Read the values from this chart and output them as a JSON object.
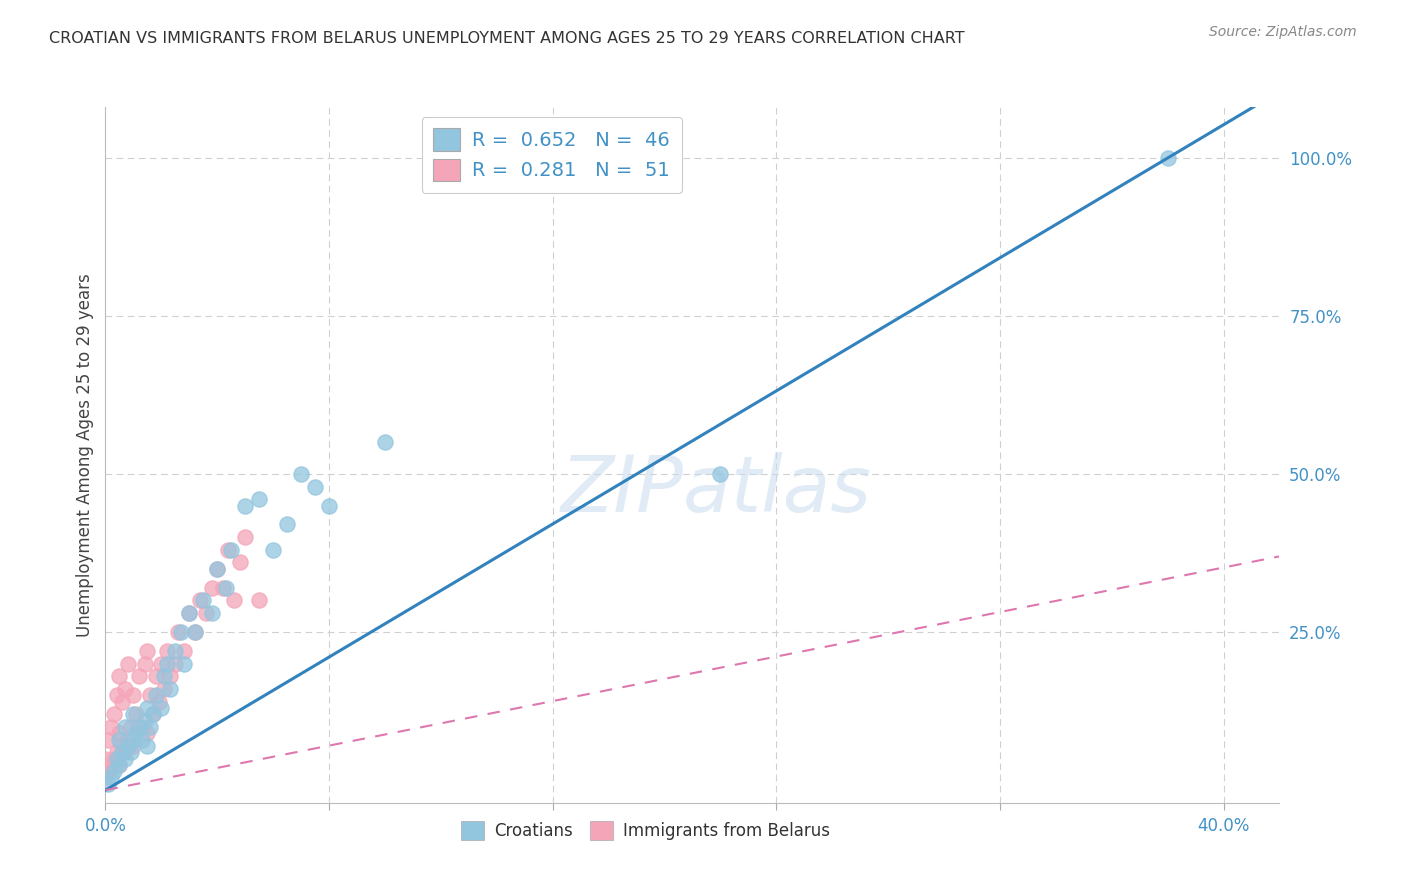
{
  "title": "CROATIAN VS IMMIGRANTS FROM BELARUS UNEMPLOYMENT AMONG AGES 25 TO 29 YEARS CORRELATION CHART",
  "source": "Source: ZipAtlas.com",
  "ylabel": "Unemployment Among Ages 25 to 29 years",
  "croatian_R": 0.652,
  "croatian_N": 46,
  "belarus_R": 0.281,
  "belarus_N": 51,
  "xlim": [
    0.0,
    0.42
  ],
  "ylim": [
    -0.02,
    1.08
  ],
  "blue_scatter_color": "#92c5de",
  "pink_scatter_color": "#f4a5b8",
  "blue_line_color": "#3182bd",
  "pink_line_color": "#de77ae",
  "title_color": "#333333",
  "axis_label_color": "#4292c6",
  "legend_text_color": "#4292c6",
  "watermark": "ZIPatlas",
  "background_color": "#ffffff",
  "grid_color": "#d0d0d0",
  "blue_line_slope": 2.63,
  "blue_line_intercept": 0.0,
  "pink_line_slope": 0.88,
  "pink_line_intercept": 0.0,
  "scatter_marker_size": 120,
  "croatian_x": [
    0.001,
    0.002,
    0.003,
    0.004,
    0.005,
    0.005,
    0.006,
    0.007,
    0.007,
    0.008,
    0.009,
    0.01,
    0.01,
    0.011,
    0.012,
    0.013,
    0.014,
    0.015,
    0.015,
    0.016,
    0.017,
    0.018,
    0.02,
    0.021,
    0.022,
    0.023,
    0.025,
    0.027,
    0.028,
    0.03,
    0.032,
    0.035,
    0.038,
    0.04,
    0.043,
    0.045,
    0.05,
    0.055,
    0.06,
    0.065,
    0.07,
    0.075,
    0.08,
    0.1,
    0.22,
    0.38
  ],
  "croatian_y": [
    0.01,
    0.02,
    0.03,
    0.05,
    0.04,
    0.08,
    0.06,
    0.05,
    0.1,
    0.07,
    0.06,
    0.08,
    0.12,
    0.09,
    0.1,
    0.08,
    0.11,
    0.07,
    0.13,
    0.1,
    0.12,
    0.15,
    0.13,
    0.18,
    0.2,
    0.16,
    0.22,
    0.25,
    0.2,
    0.28,
    0.25,
    0.3,
    0.28,
    0.35,
    0.32,
    0.38,
    0.45,
    0.46,
    0.38,
    0.42,
    0.5,
    0.48,
    0.45,
    0.55,
    0.5,
    1.0
  ],
  "belarus_x": [
    0.0,
    0.0,
    0.001,
    0.001,
    0.002,
    0.002,
    0.003,
    0.003,
    0.004,
    0.004,
    0.005,
    0.005,
    0.005,
    0.006,
    0.006,
    0.007,
    0.007,
    0.008,
    0.008,
    0.009,
    0.01,
    0.01,
    0.011,
    0.012,
    0.013,
    0.014,
    0.015,
    0.015,
    0.016,
    0.017,
    0.018,
    0.019,
    0.02,
    0.021,
    0.022,
    0.023,
    0.025,
    0.026,
    0.028,
    0.03,
    0.032,
    0.034,
    0.036,
    0.038,
    0.04,
    0.042,
    0.044,
    0.046,
    0.048,
    0.05,
    0.055
  ],
  "belarus_y": [
    0.02,
    0.05,
    0.03,
    0.08,
    0.04,
    0.1,
    0.05,
    0.12,
    0.06,
    0.15,
    0.04,
    0.09,
    0.18,
    0.07,
    0.14,
    0.06,
    0.16,
    0.08,
    0.2,
    0.1,
    0.07,
    0.15,
    0.12,
    0.18,
    0.1,
    0.2,
    0.09,
    0.22,
    0.15,
    0.12,
    0.18,
    0.14,
    0.2,
    0.16,
    0.22,
    0.18,
    0.2,
    0.25,
    0.22,
    0.28,
    0.25,
    0.3,
    0.28,
    0.32,
    0.35,
    0.32,
    0.38,
    0.3,
    0.36,
    0.4,
    0.3
  ],
  "legend1_text": "R =  0.652   N =  46",
  "legend2_text": "R =  0.281   N =  51"
}
